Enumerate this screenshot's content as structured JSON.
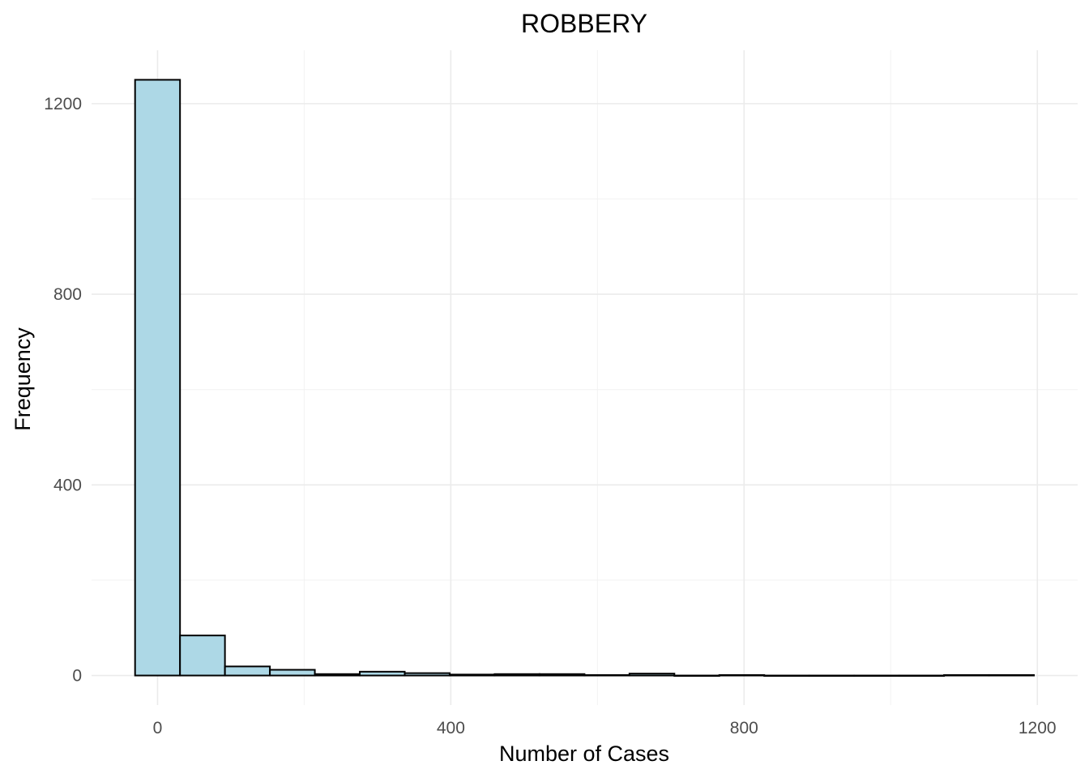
{
  "chart_data": {
    "type": "bar",
    "title": "ROBBERY",
    "xlabel": "Number of Cases",
    "ylabel": "Frequency",
    "bar_color": "#add8e6",
    "outline_color": "#000000",
    "grid": true,
    "xlim": [
      -90,
      1255
    ],
    "ylim": [
      -62,
      1312
    ],
    "x_ticks": [
      0,
      400,
      800,
      1200
    ],
    "x_tick_labels": [
      "0",
      "400",
      "800",
      "1200"
    ],
    "y_ticks": [
      0,
      400,
      800,
      1200
    ],
    "y_tick_labels": [
      "0",
      "400",
      "800",
      "1200"
    ],
    "bin_width": 61.3,
    "bin_centers": [
      0,
      61.3,
      122.6,
      183.9,
      245.2,
      306.5,
      367.8,
      429.1,
      490.4,
      551.7,
      613.0,
      674.3,
      735.6,
      796.9,
      858.2,
      919.5,
      980.8,
      1042.1,
      1103.4,
      1164.7
    ],
    "values": [
      1250,
      84,
      19,
      12,
      3,
      8,
      5,
      2,
      3,
      3,
      1,
      4,
      0,
      1,
      0,
      0,
      0,
      0,
      1,
      1
    ]
  }
}
